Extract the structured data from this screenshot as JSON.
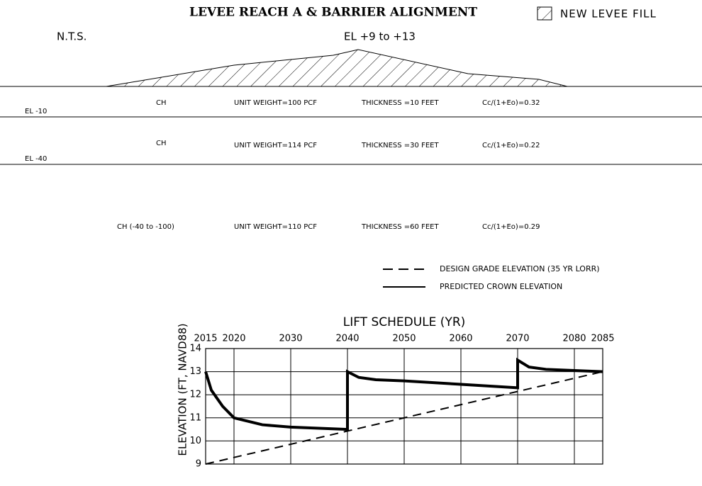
{
  "header": {
    "title": "LEVEE REACH A & BARRIER ALIGNMENT",
    "legend": "NEW LEVEE FILL",
    "scale": "N.T.S.",
    "crest": "EL +9 to +13"
  },
  "layers": [
    {
      "name": "CH",
      "unit_weight": "UNIT WEIGHT=100 PCF",
      "thickness": "THICKNESS =10 FEET",
      "compression": "Cc/(1+Eo)=0.32",
      "bottom": "EL -10"
    },
    {
      "name": "CH",
      "unit_weight": "UNIT WEIGHT=114 PCF",
      "thickness": "THICKNESS =30 FEET",
      "compression": "Cc/(1+Eo)=0.22",
      "bottom": "EL -40"
    },
    {
      "name": "CH (-40 to -100)",
      "unit_weight": "UNIT WEIGHT=110 PCF",
      "thickness": "THICKNESS =60 FEET",
      "compression": "Cc/(1+Eo)=0.29"
    }
  ],
  "chart_data": {
    "type": "line",
    "title": "LIFT SCHEDULE (YR)",
    "y_label": "ELEVATION (FT, NAVD88)",
    "xlim": [
      2015,
      2085
    ],
    "xticks": [
      2015,
      2020,
      2030,
      2040,
      2050,
      2060,
      2070,
      2080,
      2085
    ],
    "ylim": [
      9,
      14
    ],
    "yticks": [
      9,
      10,
      11,
      12,
      13,
      14
    ],
    "grid": true,
    "series": [
      {
        "name": "DESIGN GRADE ELEVATION (35 YR LORR)",
        "color": "#000000",
        "dash": true,
        "x": [
          2015,
          2085
        ],
        "values": [
          9,
          13
        ]
      },
      {
        "name": "PREDICTED CROWN ELEVATION",
        "color": "#000000",
        "dash": false,
        "x": [
          2015,
          2016,
          2018,
          2020,
          2025,
          2030,
          2035,
          2040,
          2040,
          2042,
          2045,
          2050,
          2060,
          2070,
          2070,
          2072,
          2075,
          2080,
          2085
        ],
        "values": [
          13,
          12.2,
          11.5,
          11.0,
          10.7,
          10.6,
          10.55,
          10.5,
          13.0,
          12.75,
          12.65,
          12.6,
          12.45,
          12.3,
          13.5,
          13.2,
          13.1,
          13.05,
          13.0
        ]
      }
    ]
  }
}
